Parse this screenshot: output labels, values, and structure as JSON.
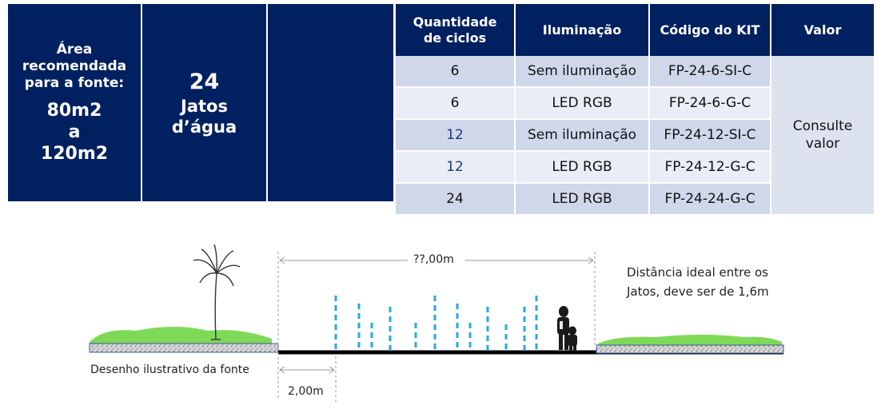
{
  "area": {
    "lines": [
      "Área",
      "recomendada",
      "para a fonte:"
    ],
    "range": [
      "80m2",
      "a",
      "120m2"
    ]
  },
  "jets": {
    "count": "24",
    "label_lines": [
      "Jatos",
      "d’água"
    ]
  },
  "table": {
    "headers": [
      "Quantidade de ciclos",
      "Iluminação",
      "Código do KIT",
      "Valor"
    ],
    "header_lines": {
      "qty": [
        "Quantidade",
        "de ciclos"
      ]
    },
    "rows": [
      {
        "ciclos": "6",
        "iluminacao": "Sem iluminação",
        "codigo": "FP-24-6-SI-C"
      },
      {
        "ciclos": "6",
        "iluminacao": "LED RGB",
        "codigo": "FP-24-6-G-C"
      },
      {
        "ciclos": "12",
        "iluminacao": "Sem iluminação",
        "codigo": "FP-24-12-SI-C"
      },
      {
        "ciclos": "12",
        "iluminacao": "LED RGB",
        "codigo": "FP-24-12-G-C"
      },
      {
        "ciclos": "24",
        "iluminacao": "LED RGB",
        "codigo": "FP-24-24-G-C"
      }
    ],
    "value_lines": [
      "Consulte",
      "valor"
    ]
  },
  "diagram": {
    "total_distance": "??,00m",
    "edge_distance": "2,00m",
    "note_lines": [
      "Distância ideal entre os",
      "Jatos, deve ser de 1,6m"
    ],
    "caption": "Desenho ilustrativo da fonte"
  },
  "colors": {
    "navy": "#002060",
    "jet": "#29a8e0",
    "grass": "#7ed957"
  }
}
